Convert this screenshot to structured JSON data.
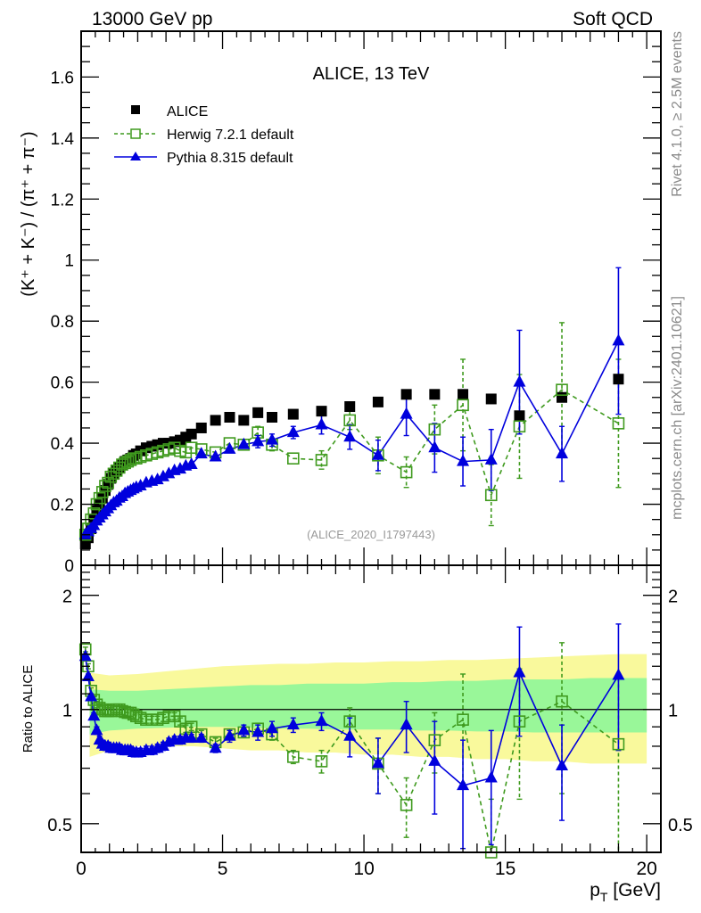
{
  "header": {
    "left": "13000 GeV pp",
    "right": "Soft QCD"
  },
  "side_text": {
    "rivet": "Rivet 4.1.0, ≥ 2.5M events",
    "mcplots": "mcplots.cern.ch [arXiv:2401.10621]"
  },
  "chart_data": [
    {
      "type": "scatter",
      "panel": "main",
      "title": "ALICE, 13 TeV",
      "xlabel": "p_T [GeV]",
      "ylabel": "(K⁺ + K⁻) / (π⁺ + π⁻)",
      "xlim": [
        0,
        20.5
      ],
      "ylim": [
        0,
        1.75
      ],
      "yticks": [
        "0",
        "0.2",
        "0.4",
        "0.6",
        "0.8",
        "1",
        "1.2",
        "1.4",
        "1.6"
      ],
      "ytick_values": [
        0,
        0.2,
        0.4,
        0.6,
        0.8,
        1.0,
        1.2,
        1.4,
        1.6
      ],
      "annotation": "(ALICE_2020_I1797443)",
      "legend": {
        "placement": "top-left",
        "entries": [
          "ALICE",
          "Herwig 7.2.1 default",
          "Pythia 8.315 default"
        ]
      },
      "series": [
        {
          "name": "ALICE",
          "marker": "filled-square",
          "color": "#000000",
          "x": [
            0.15,
            0.25,
            0.35,
            0.45,
            0.55,
            0.65,
            0.75,
            0.85,
            0.95,
            1.05,
            1.15,
            1.25,
            1.35,
            1.45,
            1.55,
            1.65,
            1.75,
            1.85,
            1.95,
            2.1,
            2.3,
            2.5,
            2.7,
            2.9,
            3.1,
            3.3,
            3.5,
            3.7,
            3.9,
            4.25,
            4.75,
            5.25,
            5.75,
            6.25,
            6.75,
            7.5,
            8.5,
            9.5,
            10.5,
            11.5,
            12.5,
            13.5,
            14.5,
            15.5,
            17.0,
            19.0
          ],
          "y": [
            0.07,
            0.09,
            0.12,
            0.15,
            0.18,
            0.2,
            0.22,
            0.245,
            0.265,
            0.285,
            0.3,
            0.31,
            0.32,
            0.33,
            0.34,
            0.345,
            0.35,
            0.36,
            0.365,
            0.375,
            0.385,
            0.39,
            0.395,
            0.4,
            0.4,
            0.405,
            0.41,
            0.42,
            0.43,
            0.45,
            0.475,
            0.485,
            0.475,
            0.5,
            0.485,
            0.495,
            0.505,
            0.52,
            0.535,
            0.56,
            0.56,
            0.56,
            0.545,
            0.49,
            0.55,
            0.61
          ]
        },
        {
          "name": "Herwig 7.2.1 default",
          "marker": "open-square",
          "line": "dashed",
          "color": "#3f9a1e",
          "x": [
            0.15,
            0.25,
            0.35,
            0.45,
            0.55,
            0.65,
            0.75,
            0.85,
            0.95,
            1.05,
            1.15,
            1.25,
            1.35,
            1.45,
            1.55,
            1.65,
            1.75,
            1.85,
            1.95,
            2.1,
            2.3,
            2.5,
            2.7,
            2.9,
            3.1,
            3.3,
            3.5,
            3.7,
            3.9,
            4.25,
            4.75,
            5.25,
            5.75,
            6.25,
            6.75,
            7.5,
            8.5,
            9.5,
            10.5,
            11.5,
            12.5,
            13.5,
            14.5,
            15.5,
            17.0,
            19.0
          ],
          "y": [
            0.1,
            0.12,
            0.15,
            0.17,
            0.2,
            0.22,
            0.24,
            0.26,
            0.27,
            0.29,
            0.3,
            0.31,
            0.32,
            0.33,
            0.335,
            0.34,
            0.345,
            0.35,
            0.35,
            0.355,
            0.36,
            0.365,
            0.37,
            0.375,
            0.38,
            0.385,
            0.375,
            0.37,
            0.385,
            0.38,
            0.37,
            0.4,
            0.395,
            0.435,
            0.395,
            0.35,
            0.345,
            0.475,
            0.36,
            0.305,
            0.445,
            0.525,
            0.23,
            0.455,
            0.575,
            0.465
          ],
          "yerr": [
            0.005,
            0.005,
            0.005,
            0.005,
            0.005,
            0.005,
            0.005,
            0.005,
            0.005,
            0.005,
            0.005,
            0.005,
            0.005,
            0.005,
            0.005,
            0.005,
            0.005,
            0.005,
            0.005,
            0.005,
            0.005,
            0.005,
            0.005,
            0.005,
            0.005,
            0.005,
            0.005,
            0.005,
            0.008,
            0.01,
            0.01,
            0.012,
            0.012,
            0.02,
            0.02,
            0.015,
            0.03,
            0.03,
            0.06,
            0.05,
            0.08,
            0.15,
            0.1,
            0.17,
            0.22,
            0.21
          ]
        },
        {
          "name": "Pythia 8.315 default",
          "marker": "filled-triangle",
          "line": "solid",
          "color": "#0000dd",
          "x": [
            0.15,
            0.25,
            0.35,
            0.45,
            0.55,
            0.65,
            0.75,
            0.85,
            0.95,
            1.05,
            1.15,
            1.25,
            1.35,
            1.45,
            1.55,
            1.65,
            1.75,
            1.85,
            1.95,
            2.1,
            2.3,
            2.5,
            2.7,
            2.9,
            3.1,
            3.3,
            3.5,
            3.7,
            3.9,
            4.25,
            4.75,
            5.25,
            5.75,
            6.25,
            6.75,
            7.5,
            8.5,
            9.5,
            10.5,
            11.5,
            12.5,
            13.5,
            14.5,
            15.5,
            17.0,
            19.0
          ],
          "y": [
            0.1,
            0.11,
            0.12,
            0.13,
            0.145,
            0.155,
            0.165,
            0.175,
            0.185,
            0.195,
            0.205,
            0.21,
            0.22,
            0.225,
            0.235,
            0.24,
            0.245,
            0.25,
            0.255,
            0.26,
            0.27,
            0.275,
            0.28,
            0.29,
            0.3,
            0.31,
            0.315,
            0.325,
            0.33,
            0.365,
            0.355,
            0.38,
            0.395,
            0.405,
            0.41,
            0.435,
            0.46,
            0.42,
            0.36,
            0.495,
            0.385,
            0.34,
            0.345,
            0.6,
            0.365,
            0.735
          ],
          "yerr": [
            0.004,
            0.004,
            0.004,
            0.004,
            0.004,
            0.004,
            0.004,
            0.004,
            0.004,
            0.004,
            0.004,
            0.004,
            0.004,
            0.004,
            0.004,
            0.004,
            0.004,
            0.004,
            0.004,
            0.004,
            0.004,
            0.004,
            0.004,
            0.004,
            0.004,
            0.004,
            0.004,
            0.004,
            0.006,
            0.01,
            0.012,
            0.012,
            0.015,
            0.02,
            0.02,
            0.02,
            0.03,
            0.04,
            0.05,
            0.07,
            0.08,
            0.08,
            0.1,
            0.17,
            0.09,
            0.24
          ]
        }
      ]
    },
    {
      "type": "scatter",
      "panel": "ratio",
      "ylabel": "Ratio to ALICE",
      "xlabel": "p_T [GeV]",
      "yscale": "log",
      "xlim": [
        0,
        20.5
      ],
      "ylim": [
        0.42,
        2.4
      ],
      "xticks": [
        "0",
        "5",
        "10",
        "15",
        "20"
      ],
      "xtick_values": [
        0,
        5,
        10,
        15,
        20
      ],
      "yticks": [
        "0.5",
        "1",
        "2"
      ],
      "ytick_values": [
        0.5,
        1,
        2
      ],
      "reference_line": 1,
      "bands": {
        "x": [
          0.3,
          1,
          2,
          3,
          4,
          5,
          6,
          7,
          8,
          9,
          10,
          11,
          12,
          13,
          14,
          15,
          16,
          17,
          18,
          19,
          20
        ],
        "inner_lo": [
          0.86,
          0.88,
          0.89,
          0.895,
          0.9,
          0.9,
          0.895,
          0.89,
          0.89,
          0.885,
          0.885,
          0.885,
          0.88,
          0.88,
          0.875,
          0.875,
          0.87,
          0.87,
          0.87,
          0.87,
          0.87
        ],
        "inner_hi": [
          1.13,
          1.12,
          1.12,
          1.13,
          1.14,
          1.15,
          1.16,
          1.16,
          1.17,
          1.17,
          1.17,
          1.18,
          1.18,
          1.19,
          1.19,
          1.2,
          1.2,
          1.2,
          1.21,
          1.21,
          1.21
        ],
        "outer_lo": [
          0.75,
          0.78,
          0.8,
          0.8,
          0.8,
          0.79,
          0.78,
          0.78,
          0.77,
          0.77,
          0.76,
          0.76,
          0.75,
          0.75,
          0.74,
          0.74,
          0.73,
          0.73,
          0.72,
          0.72,
          0.72
        ],
        "outer_hi": [
          1.25,
          1.23,
          1.24,
          1.26,
          1.28,
          1.3,
          1.31,
          1.32,
          1.32,
          1.33,
          1.33,
          1.34,
          1.34,
          1.35,
          1.35,
          1.36,
          1.37,
          1.38,
          1.39,
          1.4,
          1.4
        ],
        "inner_color": "#99f799",
        "outer_color": "#f9f99c"
      },
      "series": [
        {
          "name": "Herwig 7.2.1 default",
          "color": "#3f9a1e",
          "x": [
            0.15,
            0.25,
            0.35,
            0.45,
            0.55,
            0.65,
            0.75,
            0.85,
            0.95,
            1.05,
            1.15,
            1.25,
            1.35,
            1.45,
            1.55,
            1.65,
            1.75,
            1.85,
            1.95,
            2.1,
            2.3,
            2.5,
            2.7,
            2.9,
            3.1,
            3.3,
            3.5,
            3.7,
            3.9,
            4.25,
            4.75,
            5.25,
            5.75,
            6.25,
            6.75,
            7.5,
            8.5,
            9.5,
            10.5,
            11.5,
            12.5,
            13.5,
            14.5,
            15.5,
            17.0,
            19.0
          ],
          "y": [
            1.44,
            1.3,
            1.12,
            1.06,
            1.03,
            1.01,
            1.0,
            0.99,
            0.99,
            0.99,
            1.0,
            1.0,
            1.0,
            0.99,
            0.985,
            0.98,
            0.98,
            0.97,
            0.96,
            0.95,
            0.94,
            0.94,
            0.94,
            0.95,
            0.96,
            0.96,
            0.93,
            0.89,
            0.9,
            0.86,
            0.82,
            0.86,
            0.87,
            0.89,
            0.86,
            0.75,
            0.73,
            0.93,
            0.72,
            0.56,
            0.83,
            0.94,
            0.41,
            0.93,
            1.05,
            0.81
          ],
          "yerr": [
            0.02,
            0.02,
            0.02,
            0.02,
            0.02,
            0.02,
            0.02,
            0.02,
            0.02,
            0.02,
            0.02,
            0.02,
            0.02,
            0.02,
            0.02,
            0.02,
            0.02,
            0.02,
            0.02,
            0.02,
            0.02,
            0.02,
            0.02,
            0.02,
            0.02,
            0.02,
            0.02,
            0.02,
            0.02,
            0.02,
            0.02,
            0.02,
            0.02,
            0.03,
            0.03,
            0.03,
            0.05,
            0.08,
            0.12,
            0.1,
            0.15,
            0.3,
            0.17,
            0.35,
            0.45,
            0.4
          ]
        },
        {
          "name": "Pythia 8.315 default",
          "color": "#0000dd",
          "x": [
            0.15,
            0.25,
            0.35,
            0.45,
            0.55,
            0.65,
            0.75,
            0.85,
            0.95,
            1.05,
            1.15,
            1.25,
            1.35,
            1.45,
            1.55,
            1.65,
            1.75,
            1.85,
            1.95,
            2.1,
            2.3,
            2.5,
            2.7,
            2.9,
            3.1,
            3.3,
            3.5,
            3.7,
            3.9,
            4.25,
            4.75,
            5.25,
            5.75,
            6.25,
            6.75,
            7.5,
            8.5,
            9.5,
            10.5,
            11.5,
            12.5,
            13.5,
            14.5,
            15.5,
            17.0,
            19.0
          ],
          "y": [
            1.38,
            1.22,
            1.08,
            0.96,
            0.88,
            0.83,
            0.81,
            0.8,
            0.8,
            0.79,
            0.79,
            0.79,
            0.79,
            0.78,
            0.78,
            0.78,
            0.78,
            0.77,
            0.77,
            0.77,
            0.78,
            0.78,
            0.79,
            0.8,
            0.82,
            0.83,
            0.83,
            0.84,
            0.84,
            0.84,
            0.79,
            0.85,
            0.88,
            0.87,
            0.89,
            0.91,
            0.93,
            0.85,
            0.72,
            0.91,
            0.73,
            0.63,
            0.66,
            1.25,
            0.71,
            1.23
          ],
          "yerr": [
            0.02,
            0.02,
            0.02,
            0.02,
            0.02,
            0.02,
            0.02,
            0.02,
            0.02,
            0.02,
            0.02,
            0.02,
            0.02,
            0.02,
            0.02,
            0.02,
            0.02,
            0.02,
            0.02,
            0.02,
            0.02,
            0.02,
            0.02,
            0.02,
            0.02,
            0.02,
            0.02,
            0.02,
            0.02,
            0.02,
            0.02,
            0.03,
            0.03,
            0.04,
            0.04,
            0.04,
            0.05,
            0.1,
            0.12,
            0.14,
            0.2,
            0.2,
            0.22,
            0.4,
            0.2,
            0.45
          ]
        }
      ]
    }
  ]
}
